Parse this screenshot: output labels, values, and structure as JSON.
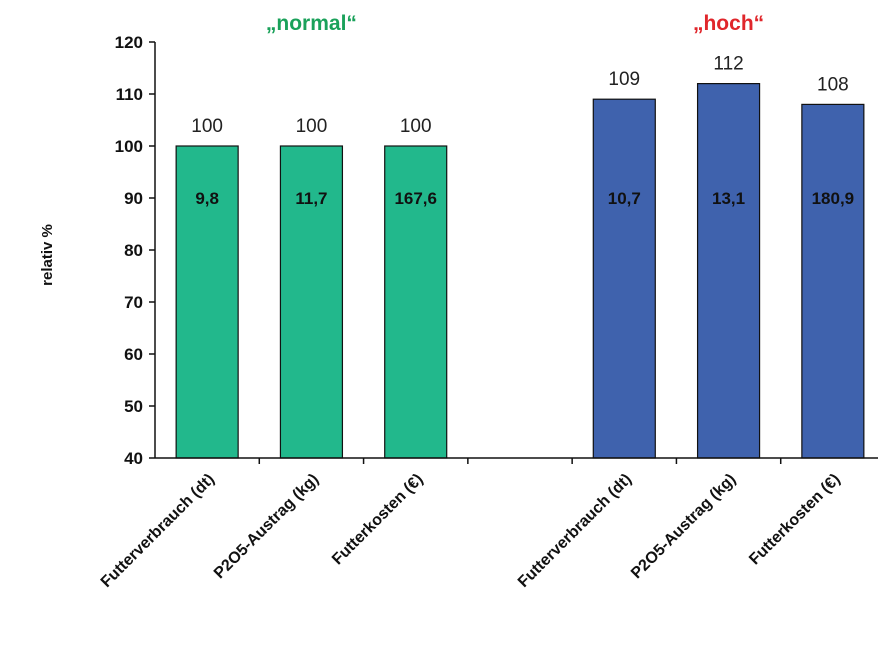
{
  "chart_data": {
    "type": "bar",
    "ylabel": "relativ %",
    "ylim": [
      40,
      120
    ],
    "yticks": [
      "40",
      "50",
      "60",
      "70",
      "80",
      "90",
      "100",
      "110",
      "120"
    ],
    "groups": [
      {
        "title": "„normal“",
        "color": "#22b88c",
        "title_color": "#1aa15a"
      },
      {
        "title": "„hoch“",
        "color": "#3f62ad",
        "title_color": "#e0262b"
      }
    ],
    "categories": [
      "Futterverbrauch (dt)",
      "P2O5-Austrag (kg)",
      "Futterkosten (€)",
      "",
      "Futterverbrauch (dt)",
      "P2O5-Austrag (kg)",
      "Futterkosten (€)"
    ],
    "bars": [
      {
        "value": 100,
        "label": "100",
        "inner": "9,8",
        "group": 0
      },
      {
        "value": 100,
        "label": "100",
        "inner": "11,7",
        "group": 0
      },
      {
        "value": 100,
        "label": "100",
        "inner": "167,6",
        "group": 0
      },
      null,
      {
        "value": 109,
        "label": "109",
        "inner": "10,7",
        "group": 1
      },
      {
        "value": 112,
        "label": "112",
        "inner": "13,1",
        "group": 1
      },
      {
        "value": 108,
        "label": "108",
        "inner": "180,9",
        "group": 1
      }
    ]
  }
}
